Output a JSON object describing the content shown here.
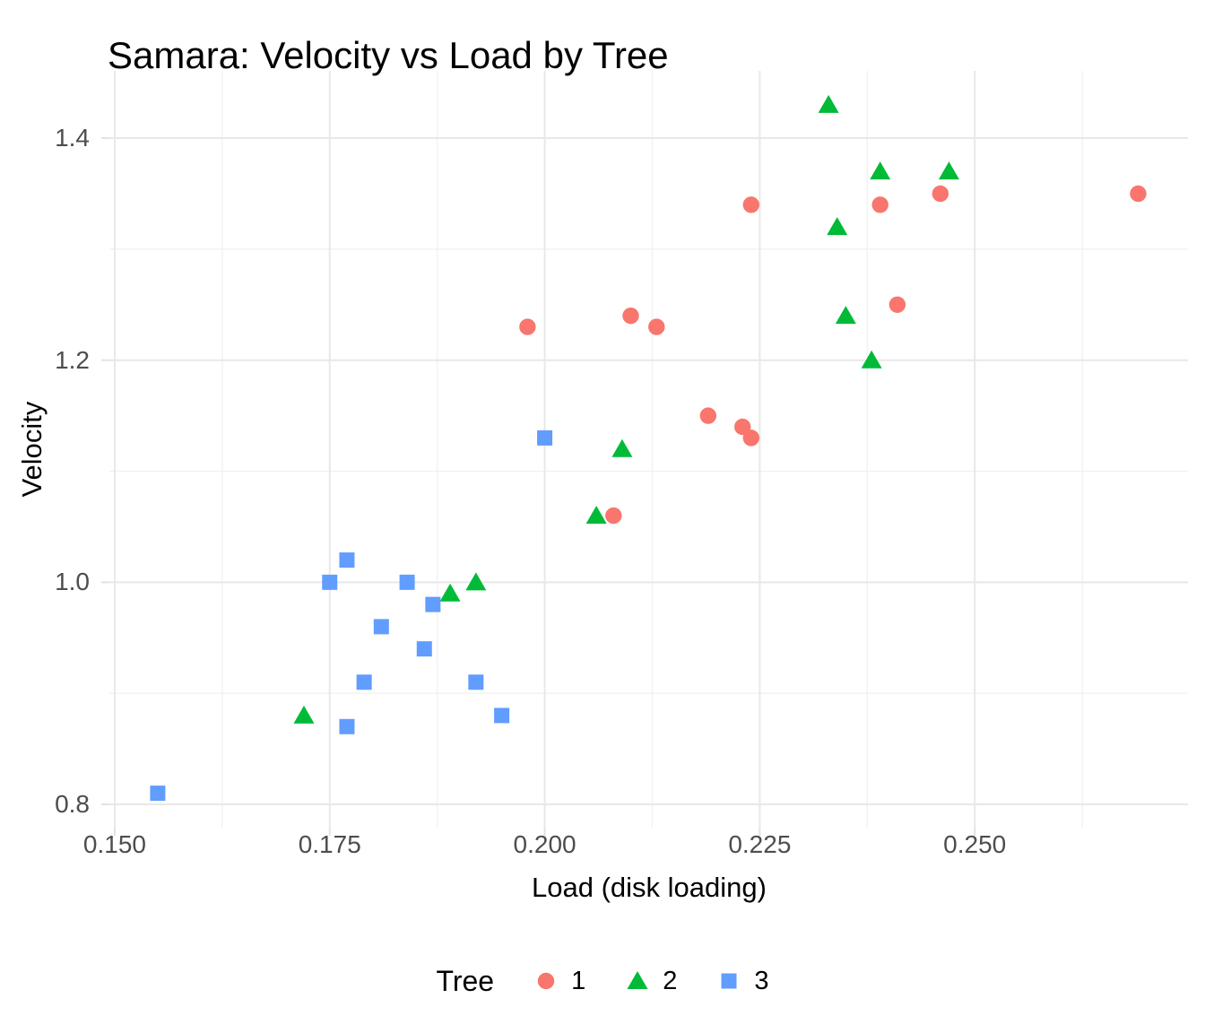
{
  "title": "Samara: Velocity vs Load by Tree",
  "chart_data": {
    "type": "scatter",
    "title": "Samara: Velocity vs Load by Tree",
    "xlabel": "Load (disk loading)",
    "ylabel": "Velocity",
    "xlim": [
      0.14938,
      0.27479
    ],
    "ylim": [
      0.779,
      1.4606
    ],
    "x_ticks": [
      0.15,
      0.175,
      0.2,
      0.225,
      0.25
    ],
    "x_tick_labels": [
      "0.150",
      "0.175",
      "0.200",
      "0.225",
      "0.250"
    ],
    "x_minor_ticks": [
      0.1625,
      0.1875,
      0.2125,
      0.2375,
      0.2625
    ],
    "y_ticks": [
      0.8,
      1.0,
      1.2,
      1.4
    ],
    "y_tick_labels": [
      "0.8",
      "1.0",
      "1.2",
      "1.4"
    ],
    "y_minor_ticks": [
      0.9,
      1.1,
      1.3
    ],
    "grid": "major+minor, light gray on white",
    "legend_title": "Tree",
    "legend_position": "bottom",
    "series": [
      {
        "name": "1",
        "shape": "circle",
        "color": "#F8766D",
        "points": [
          [
            0.198,
            1.23
          ],
          [
            0.21,
            1.24
          ],
          [
            0.213,
            1.23
          ],
          [
            0.208,
            1.06
          ],
          [
            0.219,
            1.15
          ],
          [
            0.223,
            1.14
          ],
          [
            0.224,
            1.13
          ],
          [
            0.224,
            1.34
          ],
          [
            0.239,
            1.34
          ],
          [
            0.241,
            1.25
          ],
          [
            0.246,
            1.35
          ],
          [
            0.269,
            1.35
          ]
        ]
      },
      {
        "name": "2",
        "shape": "triangle",
        "color": "#00BA38",
        "points": [
          [
            0.233,
            1.43
          ],
          [
            0.239,
            1.37
          ],
          [
            0.247,
            1.37
          ],
          [
            0.234,
            1.32
          ],
          [
            0.235,
            1.24
          ],
          [
            0.238,
            1.2
          ],
          [
            0.209,
            1.12
          ],
          [
            0.206,
            1.06
          ],
          [
            0.192,
            1.0
          ],
          [
            0.189,
            0.99
          ],
          [
            0.172,
            0.88
          ]
        ]
      },
      {
        "name": "3",
        "shape": "square",
        "color": "#619CFF",
        "points": [
          [
            0.155,
            0.81
          ],
          [
            0.175,
            1.0
          ],
          [
            0.177,
            1.02
          ],
          [
            0.177,
            0.87
          ],
          [
            0.179,
            0.91
          ],
          [
            0.181,
            0.96
          ],
          [
            0.184,
            1.0
          ],
          [
            0.186,
            0.94
          ],
          [
            0.187,
            0.98
          ],
          [
            0.192,
            0.91
          ],
          [
            0.195,
            0.88
          ],
          [
            0.2,
            1.13
          ]
        ]
      }
    ]
  },
  "style": {
    "grid_major_color": "#E8E8E8",
    "grid_minor_color": "#F2F2F2",
    "tick_mark_color": "#E2E2E2",
    "tick_label_color": "#4D4D4D",
    "text_color": "#000000",
    "background": "#FFFFFF"
  }
}
